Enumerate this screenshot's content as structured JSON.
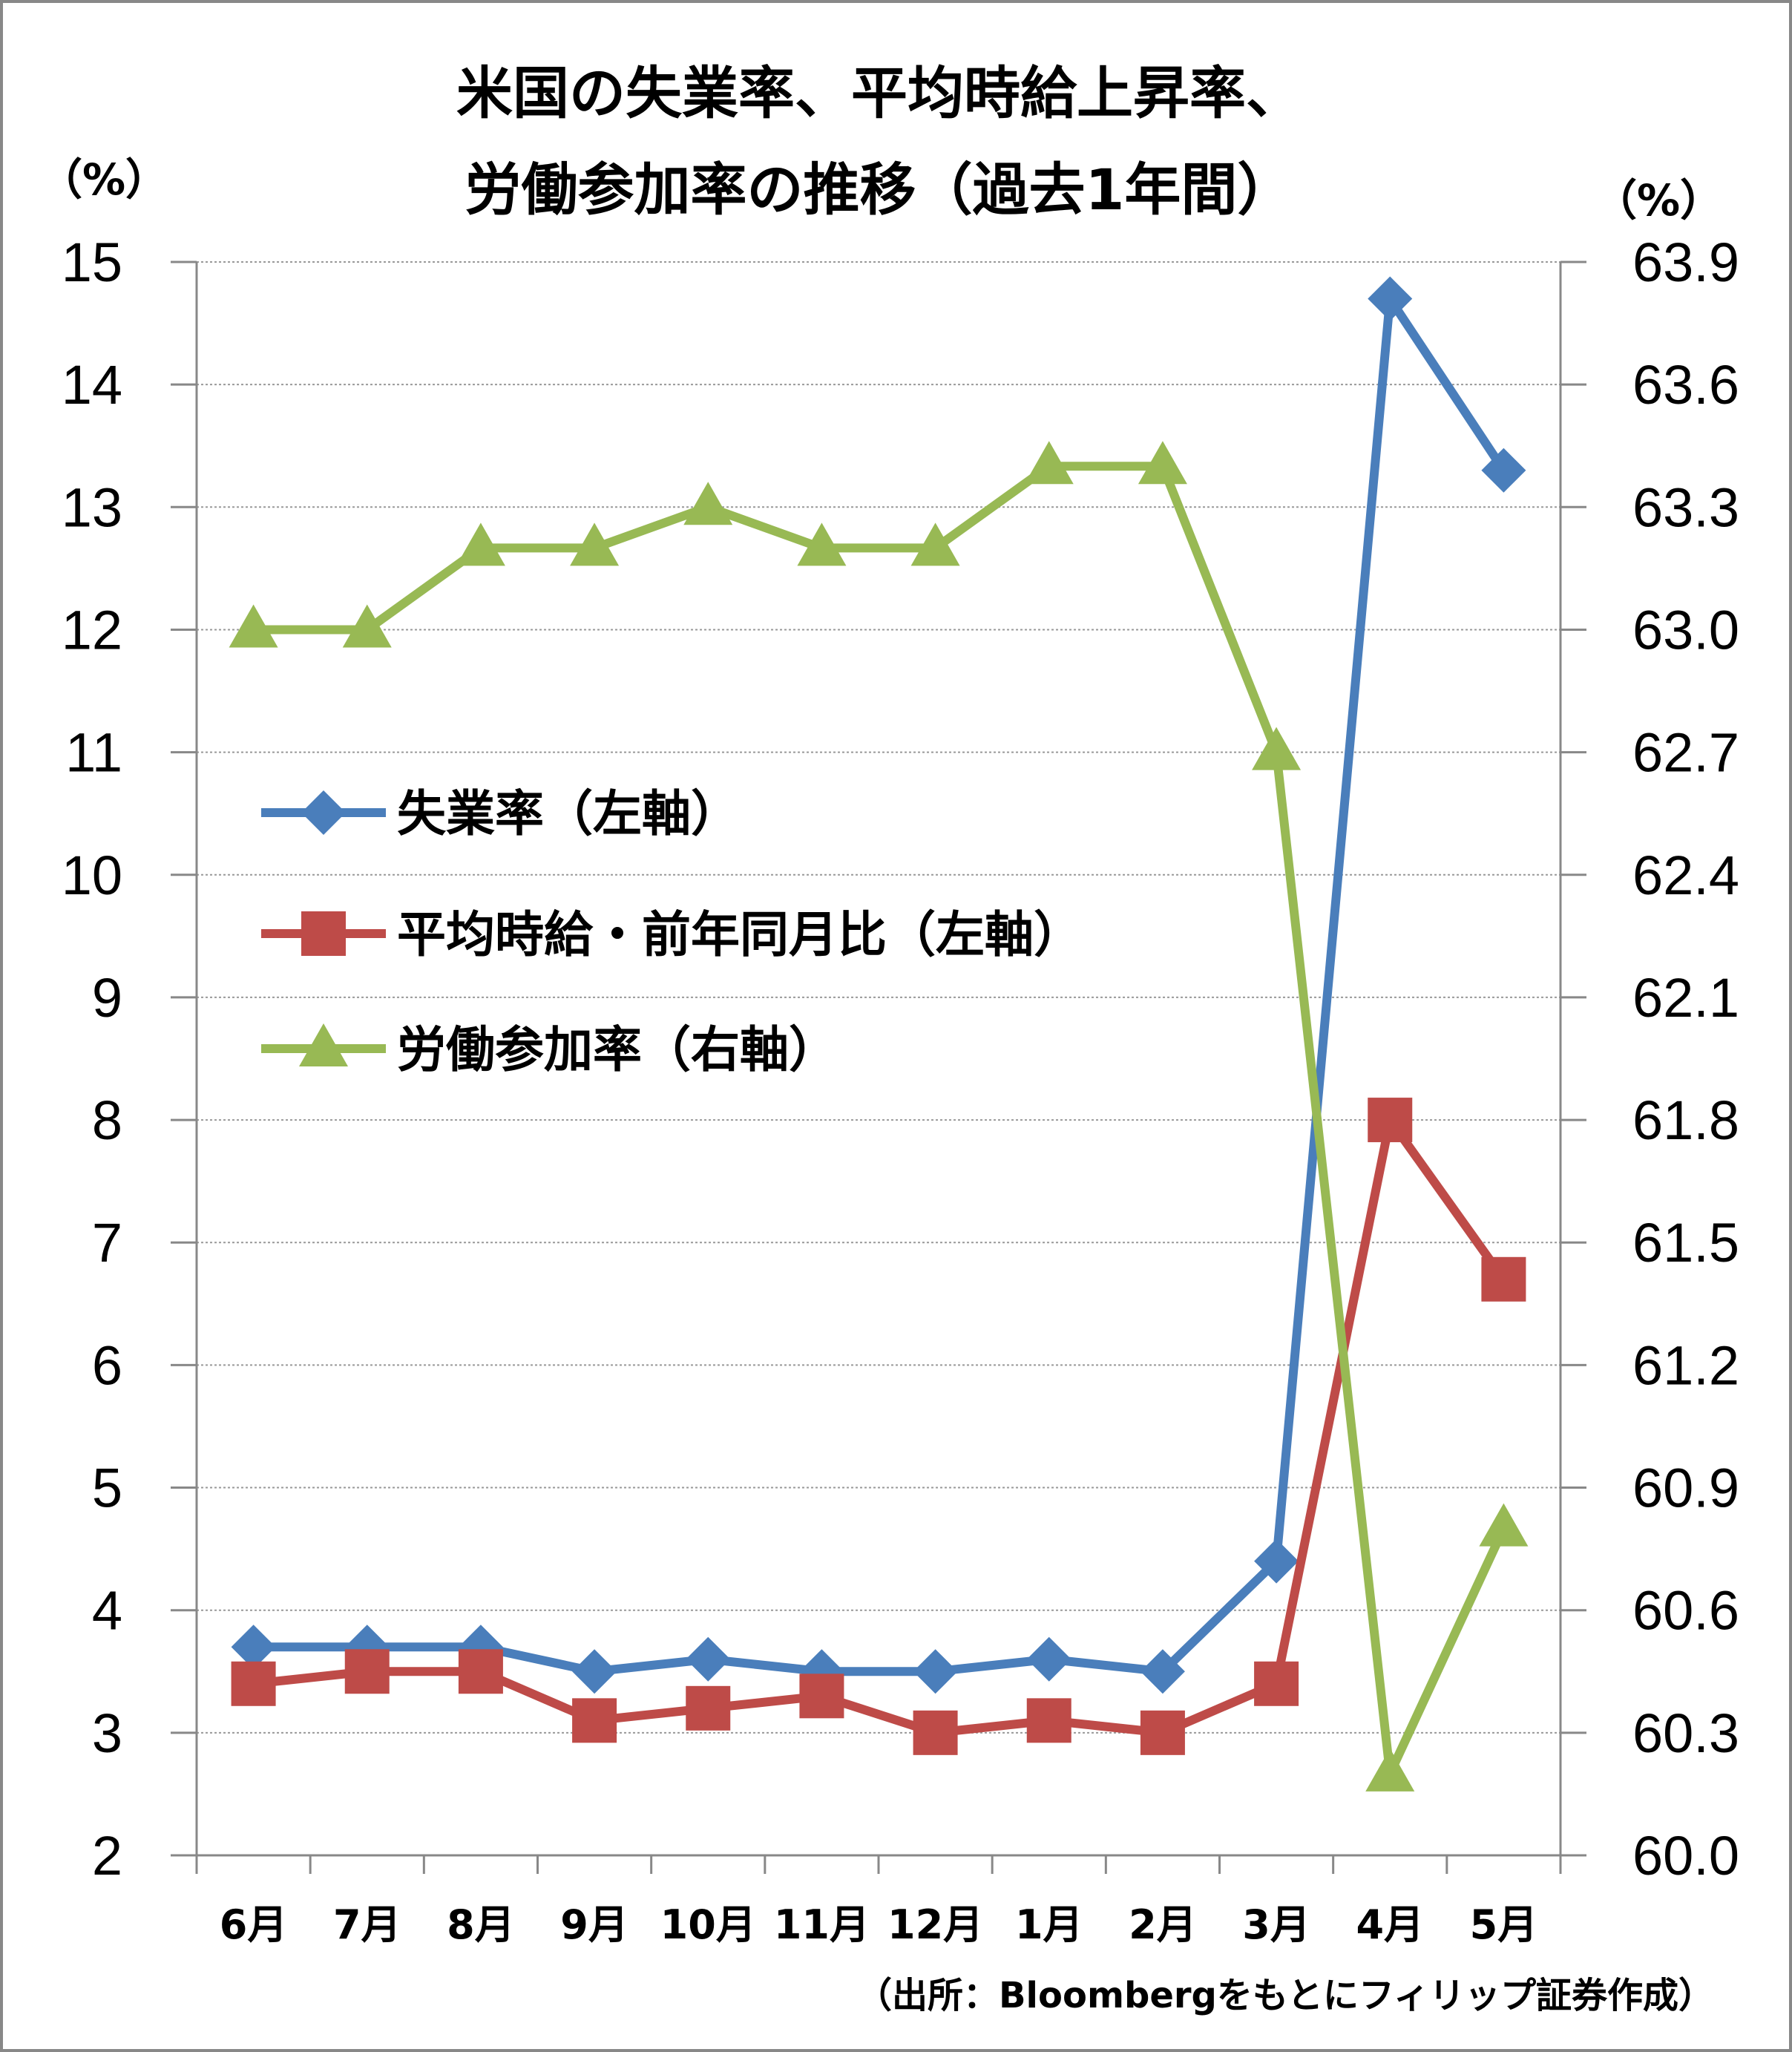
{
  "chart_data": {
    "type": "line",
    "title_lines": [
      "米国の失業率、平均時給上昇率、",
      "労働参加率の推移（過去1年間）"
    ],
    "left_unit": "（%）",
    "right_unit": "（%）",
    "categories": [
      "6月",
      "7月",
      "8月",
      "9月",
      "10月",
      "11月",
      "12月",
      "1月",
      "2月",
      "3月",
      "4月",
      "5月"
    ],
    "y_left": {
      "min": 2,
      "max": 15,
      "step": 1
    },
    "y_right": {
      "min": 60.0,
      "max": 63.9,
      "step": 0.3,
      "decimals": 1
    },
    "grid": true,
    "legend_position": "center-left",
    "series": [
      {
        "name": "失業率（左軸）",
        "axis": "left",
        "color": "#4a7ebb",
        "marker": "diamond",
        "values": [
          3.7,
          3.7,
          3.7,
          3.5,
          3.6,
          3.5,
          3.5,
          3.6,
          3.5,
          4.4,
          14.7,
          13.3
        ]
      },
      {
        "name": "平均時給・前年同月比（左軸）",
        "axis": "left",
        "color": "#be4b48",
        "marker": "square",
        "values": [
          3.4,
          3.5,
          3.5,
          3.1,
          3.2,
          3.3,
          3.0,
          3.1,
          3.0,
          3.4,
          8.0,
          6.7
        ]
      },
      {
        "name": "労働参加率（右軸）",
        "axis": "right",
        "color": "#98b954",
        "marker": "triangle",
        "values": [
          63.0,
          63.0,
          63.2,
          63.2,
          63.3,
          63.2,
          63.2,
          63.4,
          63.4,
          62.7,
          60.2,
          60.8
        ]
      }
    ],
    "source": "（出所：Bloombergをもとにフィリップ証券作成）"
  }
}
